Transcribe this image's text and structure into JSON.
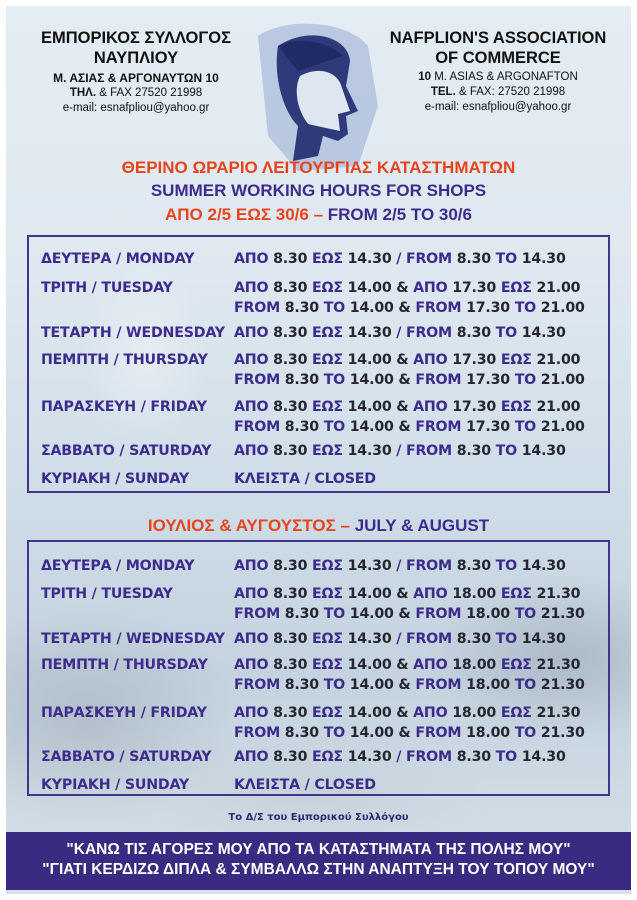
{
  "header": {
    "greek": {
      "name1": "ΕΜΠΟΡΙΚΟΣ ΣΥΛΛΟΓΟΣ",
      "name2": "ΝΑΥΠΛΙΟΥ",
      "address": "Μ. ΑΣΙΑΣ & ΑΡΓΟΝΑΥΤΩΝ 10",
      "tel_label": "ΤΗΛ.",
      "tel": " & FAX 27520 21998",
      "email": "e-mail: esnafpliou@yahoo.gr"
    },
    "english": {
      "name1": "NAFPLION'S ASSOCIATION",
      "name2": "OF COMMERCE",
      "address_num": "10",
      "address": " M. ASIAS & ARGONAFTON",
      "tel_label": "TEL.",
      "tel": " & FAX: 27520 21998",
      "email": "e-mail: esnafpliou@yahoo.gr"
    }
  },
  "title": {
    "greek": "ΘΕΡΙΝΟ ΩΡΑΡΙΟ ΛΕΙΤΟΥΡΓΙΑΣ ΚΑΤΑΣΤΗΜΑΤΩΝ",
    "english": "SUMMER WORKING HOURS FOR SHOPS",
    "period_greek": "ΑΠΟ 2/5 ΕΩΣ 30/6",
    "period_sep": " – ",
    "period_english": "FROM 2/5 TO 30/6"
  },
  "schedule1": [
    {
      "day": "ΔΕΥΤΕΡΑ / MONDAY",
      "lines": [
        "ΑΠΟ 8.30 ΕΩΣ 14.30 / FROM 8.30 TO 14.30"
      ]
    },
    {
      "day": "ΤΡΙΤΗ / TUESDAY",
      "lines": [
        "ΑΠΟ 8.30 ΕΩΣ 14.00 & ΑΠΟ 17.30 ΕΩΣ 21.00",
        "FROM 8.30 TO 14.00 & FROM 17.30 TO 21.00"
      ]
    },
    {
      "day": "ΤΕΤΑΡΤΗ / WEDNESDAY",
      "lines": [
        "ΑΠΟ 8.30 ΕΩΣ 14.30 / FROM 8.30 TO 14.30"
      ]
    },
    {
      "day": "ΠΕΜΠΤΗ / THURSDAY",
      "lines": [
        "ΑΠΟ 8.30 ΕΩΣ 14.00 & ΑΠΟ 17.30 ΕΩΣ 21.00",
        "FROM 8.30 TO 14.00 & FROM 17.30 TO 21.00"
      ]
    },
    {
      "day": "ΠΑΡΑΣΚΕΥΗ / FRIDAY",
      "lines": [
        "ΑΠΟ 8.30 ΕΩΣ 14.00 & ΑΠΟ 17.30 ΕΩΣ 21.00",
        "FROM 8.30 TO 14.00 & FROM 17.30 TO 21.00"
      ]
    },
    {
      "day": "ΣΑΒΒΑΤΟ / SATURDAY",
      "lines": [
        "ΑΠΟ 8.30 ΕΩΣ 14.30 / FROM 8.30 TO 14.30"
      ]
    },
    {
      "day": "ΚΥΡΙΑΚΗ / SUNDAY",
      "lines": [
        "ΚΛΕΙΣΤΑ / CLOSED"
      ]
    }
  ],
  "section2": {
    "greek": "ΙΟΥΛΙΟΣ & ΑΥΓΟΥΣΤΟΣ",
    "sep": " – ",
    "english": "JULY & AUGUST"
  },
  "schedule2": [
    {
      "day": "ΔΕΥΤΕΡΑ / MONDAY",
      "lines": [
        "ΑΠΟ 8.30 ΕΩΣ 14.30 / FROM 8.30 TO 14.30"
      ]
    },
    {
      "day": "ΤΡΙΤΗ / TUESDAY",
      "lines": [
        "ΑΠΟ 8.30 ΕΩΣ 14.00 & ΑΠΟ 18.00 ΕΩΣ 21.30",
        "FROM 8.30 TO 14.00 & FROM 18.00 TO 21.30"
      ]
    },
    {
      "day": "ΤΕΤΑΡΤΗ / WEDNESDAY",
      "lines": [
        "ΑΠΟ 8.30 ΕΩΣ 14.30 / FROM 8.30 TO 14.30"
      ]
    },
    {
      "day": "ΠΕΜΠΤΗ / THURSDAY",
      "lines": [
        "ΑΠΟ 8.30 ΕΩΣ 14.00 & ΑΠΟ 18.00 ΕΩΣ 21.30",
        "FROM 8.30 TO 14.00 & FROM 18.00 TO 21.30"
      ]
    },
    {
      "day": "ΠΑΡΑΣΚΕΥΗ / FRIDAY",
      "lines": [
        "ΑΠΟ 8.30 ΕΩΣ 14.00 & ΑΠΟ 18.00 ΕΩΣ 21.30",
        "FROM 8.30 TO 14.00 & FROM 18.00 TO 21.30"
      ]
    },
    {
      "day": "ΣΑΒΒΑΤΟ / SATURDAY",
      "lines": [
        "ΑΠΟ 8.30 ΕΩΣ 14.30 / FROM 8.30 TO 14.30"
      ]
    },
    {
      "day": "ΚΥΡΙΑΚΗ / SUNDAY",
      "lines": [
        "ΚΛΕΙΣΤΑ / CLOSED"
      ]
    }
  ],
  "signature": "Το Δ/Σ του Εμπορικού Συλλόγου",
  "slogan": {
    "line1": "\"ΚΑΝΩ ΤΙΣ ΑΓΟΡΕΣ ΜΟΥ ΑΠΟ ΤΑ ΚΑΤΑΣΤΗΜΑΤΑ ΤΗΣ ΠΟΛΗΣ ΜΟΥ\"",
    "line2": "\"ΓΙΑΤΙ ΚΕΡΔΙΖΩ ΔΙΠΛΑ & ΣΥΜΒΑΛΛΩ ΣΤΗΝ ΑΝΑΠΤΥΞΗ ΤΟΥ ΤΟΠΟΥ ΜΟΥ\""
  },
  "colors": {
    "accent_red": "#e8441c",
    "purple": "#3d2c8c",
    "band": "#3a2a82"
  },
  "logo": {
    "icon": "hermes-head-logo"
  }
}
